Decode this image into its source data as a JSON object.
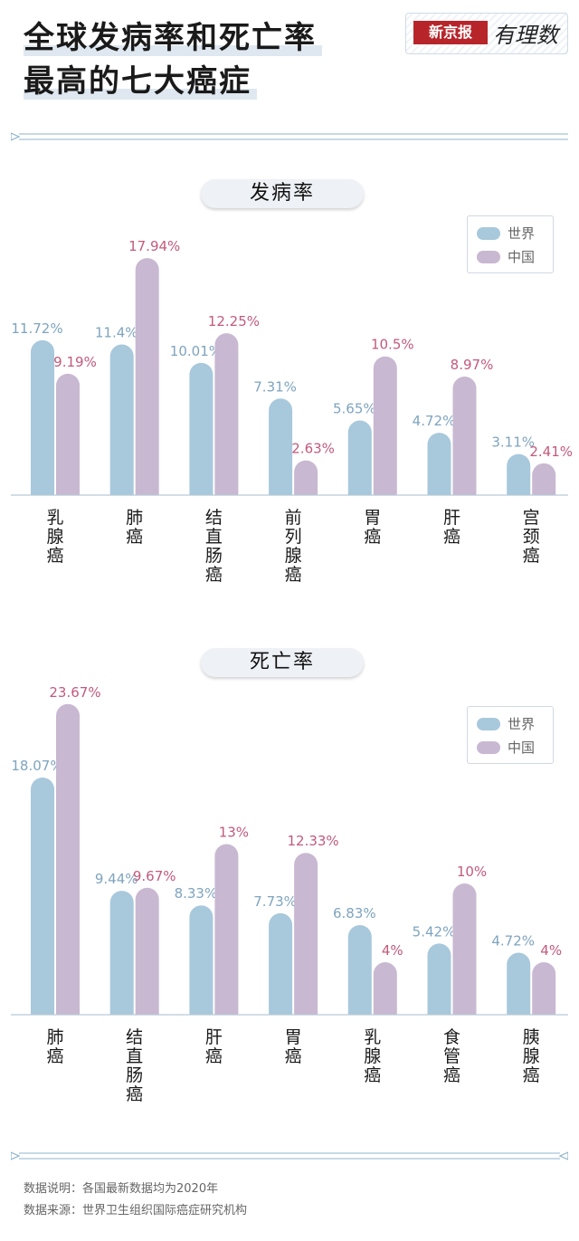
{
  "header": {
    "title_line1": "全球发病率和死亡率",
    "title_line2": "最高的七大癌症",
    "brand_name": "新京报",
    "brand_script": "有理数"
  },
  "colors": {
    "world": "#a8c8dc",
    "china": "#c9b8d1",
    "world_label": "#7fa4bf",
    "china_label": "#c25a7b",
    "axis": "#b9c9d6"
  },
  "legend": {
    "world": "世界",
    "china": "中国"
  },
  "charts": [
    {
      "section_title": "发病率",
      "chart_data": {
        "type": "bar",
        "title": "发病率",
        "categories": [
          "乳腺癌",
          "肺癌",
          "结直肠癌",
          "前列腺癌",
          "胃癌",
          "肝癌",
          "宫颈癌"
        ],
        "series": [
          {
            "name": "世界",
            "values": [
              11.72,
              11.4,
              10.01,
              7.31,
              5.65,
              4.72,
              3.11
            ],
            "labels": [
              "11.72%",
              "11.4%",
              "10.01%",
              "7.31%",
              "5.65%",
              "4.72%",
              "3.11%"
            ]
          },
          {
            "name": "中国",
            "values": [
              9.19,
              17.94,
              12.25,
              2.63,
              10.5,
              8.97,
              2.41
            ],
            "labels": [
              "9.19%",
              "17.94%",
              "12.25%",
              "2.63%",
              "10.5%",
              "8.97%",
              "2.41%"
            ]
          }
        ],
        "legend_position": "top-right"
      }
    },
    {
      "section_title": "死亡率",
      "chart_data": {
        "type": "bar",
        "title": "死亡率",
        "categories": [
          "肺癌",
          "结直肠癌",
          "肝癌",
          "胃癌",
          "乳腺癌",
          "食管癌",
          "胰腺癌"
        ],
        "series": [
          {
            "name": "世界",
            "values": [
              18.07,
              9.44,
              8.33,
              7.73,
              6.83,
              5.42,
              4.72
            ],
            "labels": [
              "18.07%",
              "9.44%",
              "8.33%",
              "7.73%",
              "6.83%",
              "5.42%",
              "4.72%"
            ]
          },
          {
            "name": "中国",
            "values": [
              23.67,
              9.67,
              13,
              12.33,
              4,
              10,
              4
            ],
            "labels": [
              "23.67%",
              "9.67%",
              "13%",
              "12.33%",
              "4%",
              "10%",
              "4%"
            ]
          }
        ],
        "legend_position": "top-right"
      }
    }
  ],
  "footer": {
    "note": "数据说明：各国最新数据均为2020年",
    "source": "数据来源：世界卫生组织国际癌症研究机构"
  }
}
